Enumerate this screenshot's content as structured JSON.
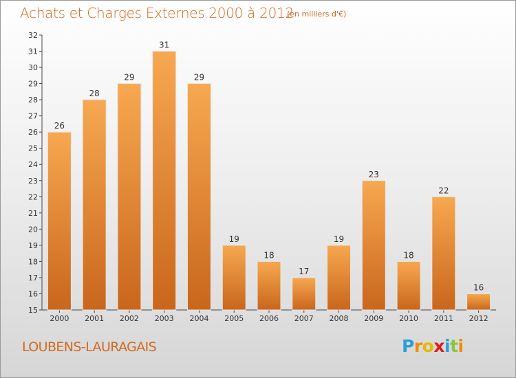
{
  "chart_data": {
    "type": "bar",
    "title": "Achats et Charges Externes 2000 à 2012",
    "subtitle": "(en milliers d'€)",
    "categories": [
      "2000",
      "2001",
      "2002",
      "2003",
      "2004",
      "2005",
      "2006",
      "2007",
      "2008",
      "2009",
      "2010",
      "2011",
      "2012"
    ],
    "values": [
      26,
      28,
      29,
      31,
      29,
      19,
      18,
      17,
      19,
      23,
      18,
      22,
      16
    ],
    "xlabel": "",
    "ylabel": "",
    "ylim": [
      15,
      32
    ],
    "yticks": [
      15,
      16,
      17,
      18,
      19,
      20,
      21,
      22,
      23,
      24,
      25,
      26,
      27,
      28,
      29,
      30,
      31,
      32
    ],
    "grid": false,
    "bar_color": "#f5a04a",
    "bar_color_dark": "#c8641a"
  },
  "location_label": "LOUBENS-LAURAGAIS",
  "logo": {
    "letters": [
      "P",
      "r",
      "o",
      "x",
      "i",
      "t",
      "i"
    ]
  },
  "colors": {
    "title": "#d2691e"
  }
}
